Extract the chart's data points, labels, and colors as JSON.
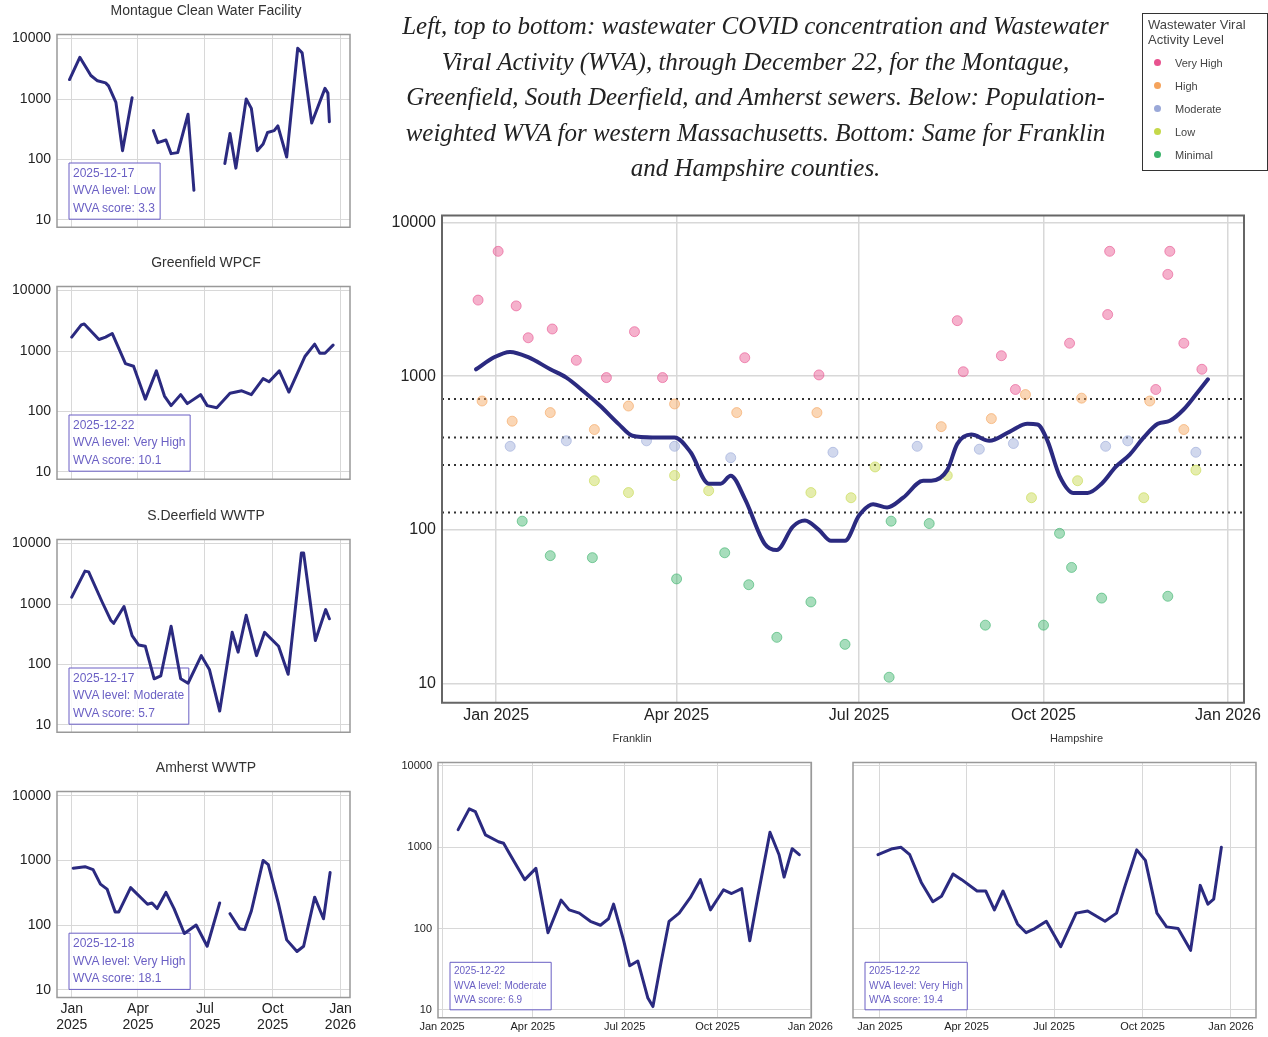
{
  "chart_data": [
    {
      "type": "line",
      "title": "Montague Clean Water Facility",
      "log": "y",
      "grid": true,
      "tick_labels": "y",
      "xlim": [
        "2024-12-12",
        "2026-01-14"
      ],
      "ylim": [
        7.6,
        11700
      ],
      "xticks": [
        {
          "value": "2025-01-01",
          "label": null
        },
        {
          "value": "2025-04-01",
          "label": null
        },
        {
          "value": "2025-07-01",
          "label": null
        },
        {
          "value": "2025-10-01",
          "label": null
        },
        {
          "value": "2026-01-01",
          "label": null
        }
      ],
      "yticks": [
        10,
        100,
        1000,
        10000
      ],
      "annotations": [
        "2025-12-17",
        "WVA level: Low",
        "WVA score: 3.3"
      ],
      "series": [
        {
          "type": "line",
          "color": "#2b2a80",
          "marker": "none",
          "line_style": "solid",
          "x": [
            "2024-12-29",
            "2025-01-12",
            "2025-01-27",
            "2025-02-05",
            "2025-02-16",
            "2025-02-20",
            "2025-03-02",
            "2025-03-11",
            "2025-03-24",
            "2025-04-06",
            "2025-04-13",
            "2025-04-22",
            "2025-04-28",
            "2025-05-09",
            "2025-05-16",
            "2025-05-25",
            "2025-06-08",
            "2025-06-16",
            "2025-06-30",
            "2025-07-28",
            "2025-08-04",
            "2025-08-12",
            "2025-08-26",
            "2025-09-02",
            "2025-09-10",
            "2025-09-18",
            "2025-09-24",
            "2025-10-03",
            "2025-10-08",
            "2025-10-20",
            "2025-11-04",
            "2025-11-10",
            "2025-11-23",
            "2025-12-11",
            "2025-12-15",
            "2025-12-17"
          ],
          "values": [
            2100,
            4900,
            2450,
            2000,
            1850,
            1650,
            880,
            140,
            1050,
            null,
            null,
            300,
            190,
            210,
            125,
            130,
            560,
            31,
            null,
            86,
            270,
            72,
            1000,
            700,
            140,
            180,
            280,
            300,
            360,
            110,
            6900,
            5800,
            400,
            1500,
            1250,
            420
          ]
        }
      ]
    },
    {
      "type": "line",
      "title": "Greenfield WPCF",
      "log": "y",
      "grid": true,
      "tick_labels": "y",
      "xlim": [
        "2024-12-12",
        "2026-01-14"
      ],
      "ylim": [
        7.6,
        11700
      ],
      "xticks": [
        {
          "value": "2025-01-01",
          "label": null
        },
        {
          "value": "2025-04-01",
          "label": null
        },
        {
          "value": "2025-07-01",
          "label": null
        },
        {
          "value": "2025-10-01",
          "label": null
        },
        {
          "value": "2026-01-01",
          "label": null
        }
      ],
      "yticks": [
        10,
        100,
        1000,
        10000
      ],
      "annotations": [
        "2025-12-22",
        "WVA level: Very High",
        "WVA score: 10.1"
      ],
      "series": [
        {
          "type": "line",
          "color": "#2b2a80",
          "marker": "none",
          "line_style": "solid",
          "x": [
            "2025-01-01",
            "2025-01-14",
            "2025-01-18",
            "2025-02-07",
            "2025-02-16",
            "2025-02-25",
            "2025-03-04",
            "2025-03-15",
            "2025-03-26",
            "2025-04-11",
            "2025-04-26",
            "2025-05-07",
            "2025-05-16",
            "2025-05-29",
            "2025-06-07",
            "2025-06-25",
            "2025-07-04",
            "2025-07-17",
            "2025-08-04",
            "2025-08-20",
            "2025-09-02",
            "2025-09-18",
            "2025-09-26",
            "2025-10-10",
            "2025-10-23",
            "2025-11-14",
            "2025-11-27",
            "2025-12-04",
            "2025-12-11",
            "2025-12-22"
          ],
          "values": [
            1700,
            2700,
            2800,
            1550,
            1700,
            1950,
            1250,
            620,
            560,
            160,
            470,
            180,
            125,
            190,
            135,
            190,
            125,
            115,
            200,
            220,
            190,
            350,
            310,
            470,
            210,
            820,
            1300,
            920,
            920,
            1250
          ]
        }
      ]
    },
    {
      "type": "line",
      "title": "S.Deerfield WWTP",
      "log": "y",
      "grid": true,
      "tick_labels": "y",
      "xlim": [
        "2024-12-12",
        "2026-01-14"
      ],
      "ylim": [
        7.6,
        11700
      ],
      "xticks": [
        {
          "value": "2025-01-01",
          "label": null
        },
        {
          "value": "2025-04-01",
          "label": null
        },
        {
          "value": "2025-07-01",
          "label": null
        },
        {
          "value": "2025-10-01",
          "label": null
        },
        {
          "value": "2026-01-01",
          "label": null
        }
      ],
      "yticks": [
        10,
        100,
        1000,
        10000
      ],
      "annotations": [
        "2025-12-17",
        "WVA level: Moderate",
        "WVA score: 5.7"
      ],
      "series": [
        {
          "type": "line",
          "color": "#2b2a80",
          "marker": "none",
          "line_style": "solid",
          "x": [
            "2025-01-01",
            "2025-01-19",
            "2025-01-24",
            "2025-02-11",
            "2025-02-23",
            "2025-02-27",
            "2025-03-13",
            "2025-03-24",
            "2025-04-02",
            "2025-04-11",
            "2025-04-23",
            "2025-05-02",
            "2025-05-16",
            "2025-05-29",
            "2025-06-08",
            "2025-06-26",
            "2025-07-07",
            "2025-07-21",
            "2025-08-07",
            "2025-08-15",
            "2025-08-26",
            "2025-09-09",
            "2025-09-20",
            "2025-10-09",
            "2025-10-22",
            "2025-11-09",
            "2025-11-12",
            "2025-11-28",
            "2025-12-12",
            "2025-12-17"
          ],
          "values": [
            1300,
            3500,
            3400,
            1100,
            540,
            480,
            910,
            300,
            210,
            200,
            58,
            65,
            430,
            58,
            49,
            140,
            83,
            17,
            340,
            160,
            650,
            140,
            340,
            200,
            69,
            7000,
            7000,
            250,
            810,
            570
          ]
        }
      ]
    },
    {
      "type": "line",
      "title": "Amherst WWTP",
      "log": "y",
      "grid": true,
      "xlim": [
        "2024-12-12",
        "2026-01-14"
      ],
      "ylim": [
        7.6,
        11700
      ],
      "xticks": [
        {
          "value": "2025-01-01",
          "label": "Jan 2025"
        },
        {
          "value": "2025-04-01",
          "label": "Apr 2025"
        },
        {
          "value": "2025-07-01",
          "label": "Jul 2025"
        },
        {
          "value": "2025-10-01",
          "label": "Oct 2025"
        },
        {
          "value": "2026-01-01",
          "label": "Jan 2026"
        }
      ],
      "yticks": [
        10,
        100,
        1000,
        10000
      ],
      "annotations": [
        "2025-12-18",
        "WVA level: Very High",
        "WVA score: 18.1"
      ],
      "series": [
        {
          "type": "line",
          "color": "#2b2a80",
          "marker": "none",
          "line_style": "solid",
          "x": [
            "2025-01-03",
            "2025-01-19",
            "2025-01-30",
            "2025-02-09",
            "2025-02-18",
            "2025-03-01",
            "2025-03-06",
            "2025-03-22",
            "2025-04-14",
            "2025-04-20",
            "2025-04-27",
            "2025-05-09",
            "2025-05-20",
            "2025-06-03",
            "2025-06-19",
            "2025-07-04",
            "2025-07-21",
            "2025-07-29",
            "2025-08-04",
            "2025-08-17",
            "2025-08-24",
            "2025-09-02",
            "2025-09-18",
            "2025-09-25",
            "2025-10-09",
            "2025-10-20",
            "2025-11-03",
            "2025-11-12",
            "2025-11-27",
            "2025-12-09",
            "2025-12-18"
          ],
          "values": [
            760,
            800,
            720,
            430,
            360,
            160,
            160,
            380,
            210,
            220,
            180,
            320,
            180,
            74,
            100,
            47,
            220,
            null,
            150,
            88,
            85,
            165,
            1000,
            860,
            210,
            59,
            39,
            47,
            270,
            125,
            650
          ]
        }
      ]
    },
    {
      "type": "line",
      "title": "Left, top to bottom: wastewater COVID concentration and Wastewater Viral Activity (WVA), through December 22, for the Montague, Greenfield, South Deerfield, and Amherst sewers. Below: Population-weighted WVA for western Massachusetts. Bottom: Same for Franklin and Hampshire counties.",
      "log": "y",
      "grid": true,
      "legend": "top right",
      "legend_title": "Wastewater Viral Activity Level",
      "xlim": [
        "2024-12-05",
        "2026-01-09"
      ],
      "ylim": [
        7.5,
        11100
      ],
      "xticks": [
        {
          "value": "2025-01-01",
          "label": "Jan 2025"
        },
        {
          "value": "2025-04-01",
          "label": "Apr 2025"
        },
        {
          "value": "2025-07-01",
          "label": "Jul 2025"
        },
        {
          "value": "2025-10-01",
          "label": "Oct 2025"
        },
        {
          "value": "2026-01-01",
          "label": "Jan 2026"
        }
      ],
      "yticks": [
        10,
        100,
        1000,
        10000
      ],
      "ref_lines": [
        {
          "axis": "y",
          "value": 710,
          "line_style": "dotted",
          "color": "#333333"
        },
        {
          "axis": "y",
          "value": 400,
          "line_style": "dotted",
          "color": "#333333"
        },
        {
          "axis": "y",
          "value": 265,
          "line_style": "dotted",
          "color": "#333333"
        },
        {
          "axis": "y",
          "value": 130,
          "line_style": "dotted",
          "color": "#333333"
        }
      ],
      "series": [
        {
          "type": "scatter",
          "name": "Very High",
          "color": "#e8538f",
          "marker": "circle",
          "x": [
            "2024-12-23",
            "2025-01-02",
            "2025-01-11",
            "2025-01-17",
            "2025-01-29",
            "2025-02-10",
            "2025-02-25",
            "2025-03-11",
            "2025-03-25",
            "2025-05-05",
            "2025-06-11",
            "2025-08-19",
            "2025-08-22",
            "2025-09-10",
            "2025-09-17",
            "2025-10-14",
            "2025-11-03",
            "2025-11-02",
            "2025-11-26",
            "2025-12-03",
            "2025-12-02",
            "2025-12-10",
            "2025-12-19"
          ],
          "values": [
            3130,
            6500,
            2870,
            1780,
            2030,
            1270,
            980,
            1950,
            980,
            1320,
            1020,
            2300,
            1070,
            1360,
            820,
            1640,
            6500,
            2520,
            820,
            6500,
            4600,
            1640,
            1110
          ]
        },
        {
          "type": "scatter",
          "name": "High",
          "color": "#f5a35c",
          "marker": "circle",
          "x": [
            "2024-12-25",
            "2025-01-09",
            "2025-01-28",
            "2025-02-19",
            "2025-03-08",
            "2025-03-31",
            "2025-05-01",
            "2025-06-10",
            "2025-08-11",
            "2025-09-05",
            "2025-09-22",
            "2025-10-20",
            "2025-11-23",
            "2025-12-10"
          ],
          "values": [
            690,
            510,
            580,
            450,
            640,
            660,
            580,
            580,
            470,
            530,
            760,
            720,
            690,
            450
          ]
        },
        {
          "type": "scatter",
          "name": "Moderate",
          "color": "#9aa8d8",
          "marker": "circle",
          "x": [
            "2025-01-08",
            "2025-02-05",
            "2025-03-17",
            "2025-03-31",
            "2025-04-28",
            "2025-06-18",
            "2025-07-30",
            "2025-08-30",
            "2025-09-16",
            "2025-11-01",
            "2025-11-12",
            "2025-12-16"
          ],
          "values": [
            350,
            380,
            380,
            350,
            295,
            320,
            350,
            335,
            365,
            350,
            380,
            320
          ]
        },
        {
          "type": "scatter",
          "name": "Low",
          "color": "#c5d84a",
          "marker": "circle",
          "x": [
            "2025-02-19",
            "2025-03-08",
            "2025-03-31",
            "2025-04-17",
            "2025-06-07",
            "2025-06-27",
            "2025-07-09",
            "2025-08-14",
            "2025-09-25",
            "2025-10-18",
            "2025-11-20",
            "2025-12-16"
          ],
          "values": [
            209,
            175,
            226,
            180,
            175,
            162,
            257,
            226,
            162,
            209,
            162,
            245
          ]
        },
        {
          "type": "scatter",
          "name": "Minimal",
          "color": "#3bb36a",
          "marker": "circle",
          "x": [
            "2025-01-14",
            "2025-01-28",
            "2025-02-18",
            "2025-04-01",
            "2025-04-25",
            "2025-05-07",
            "2025-05-21",
            "2025-06-07",
            "2025-06-24",
            "2025-07-16",
            "2025-07-17",
            "2025-08-05",
            "2025-09-02",
            "2025-10-01",
            "2025-10-09",
            "2025-10-15",
            "2025-10-30",
            "2025-12-02"
          ],
          "values": [
            114,
            68,
            66,
            48,
            71,
            44,
            20,
            34,
            18,
            11,
            114,
            110,
            24,
            24,
            95,
            57,
            36,
            37
          ]
        },
        {
          "type": "line",
          "color": "#2b2a80",
          "marker": "none",
          "line_style": "solid",
          "x": [
            "2024-12-22",
            "2024-12-31",
            "2025-01-08",
            "2025-01-17",
            "2025-01-28",
            "2025-02-05",
            "2025-02-14",
            "2025-02-22",
            "2025-03-03",
            "2025-03-10",
            "2025-03-20",
            "2025-03-31",
            "2025-04-08",
            "2025-04-17",
            "2025-04-23",
            "2025-04-28",
            "2025-05-05",
            "2025-05-15",
            "2025-05-21",
            "2025-05-29",
            "2025-06-04",
            "2025-06-11",
            "2025-06-17",
            "2025-06-24",
            "2025-07-01",
            "2025-07-08",
            "2025-07-15",
            "2025-07-23",
            "2025-08-02",
            "2025-08-06",
            "2025-08-14",
            "2025-08-19",
            "2025-08-26",
            "2025-09-04",
            "2025-09-14",
            "2025-09-23",
            "2025-09-28",
            "2025-10-03",
            "2025-10-09",
            "2025-10-16",
            "2025-10-23",
            "2025-10-30",
            "2025-11-06",
            "2025-11-13",
            "2025-11-20",
            "2025-11-27",
            "2025-12-03",
            "2025-12-10",
            "2025-12-17",
            "2025-12-22"
          ],
          "values": [
            1110,
            1330,
            1440,
            1330,
            1110,
            980,
            790,
            640,
            490,
            410,
            400,
            400,
            320,
            200,
            200,
            225,
            160,
            81,
            74,
            105,
            115,
            100,
            85,
            85,
            124,
            147,
            140,
            162,
            209,
            209,
            245,
            363,
            417,
            380,
            435,
            490,
            485,
            380,
            225,
            174,
            174,
            200,
            257,
            309,
            400,
            490,
            513,
            610,
            790,
            955
          ]
        }
      ]
    },
    {
      "type": "line",
      "title": "Franklin",
      "log": "y",
      "grid": true,
      "xlim": [
        "2024-12-28",
        "2026-01-02"
      ],
      "ylim": [
        8,
        11000
      ],
      "xticks": [
        {
          "value": "2025-01-01",
          "label": "Jan 2025"
        },
        {
          "value": "2025-04-01",
          "label": "Apr 2025"
        },
        {
          "value": "2025-07-01",
          "label": "Jul 2025"
        },
        {
          "value": "2025-10-01",
          "label": "Oct 2025"
        },
        {
          "value": "2026-01-01",
          "label": "Jan 2026"
        }
      ],
      "yticks": [
        10,
        100,
        1000,
        10000
      ],
      "annotations": [
        "2025-12-22",
        "WVA level: Moderate",
        "WVA score: 6.9"
      ],
      "series": [
        {
          "type": "line",
          "color": "#2b2a80",
          "marker": "none",
          "line_style": "solid",
          "x": [
            "2025-01-17",
            "2025-01-28",
            "2025-02-03",
            "2025-02-13",
            "2025-02-26",
            "2025-03-03",
            "2025-03-14",
            "2025-03-24",
            "2025-04-04",
            "2025-04-16",
            "2025-04-29",
            "2025-05-07",
            "2025-05-17",
            "2025-05-28",
            "2025-06-07",
            "2025-06-15",
            "2025-06-20",
            "2025-06-30",
            "2025-07-06",
            "2025-07-14",
            "2025-07-24",
            "2025-07-29",
            "2025-08-06",
            "2025-08-14",
            "2025-08-24",
            "2025-09-04",
            "2025-09-14",
            "2025-09-24",
            "2025-10-07",
            "2025-10-15",
            "2025-10-25",
            "2025-11-02",
            "2025-11-10",
            "2025-11-22",
            "2025-12-01",
            "2025-12-06",
            "2025-12-14",
            "2025-12-21"
          ],
          "values": [
            1650,
            2970,
            2750,
            1420,
            1170,
            1120,
            650,
            400,
            550,
            89,
            224,
            170,
            155,
            123,
            110,
            132,
            200,
            71,
            35,
            40,
            14,
            11,
            38,
            123,
            155,
            240,
            400,
            170,
            300,
            270,
            310,
            71,
            250,
            1530,
            810,
            430,
            960,
            810
          ]
        }
      ]
    },
    {
      "type": "line",
      "title": "Hampshire",
      "log": "y",
      "grid": true,
      "tick_labels": "x",
      "xlim": [
        "2024-12-04",
        "2026-01-27"
      ],
      "ylim": [
        8,
        11000
      ],
      "xticks": [
        {
          "value": "2025-01-01",
          "label": "Jan 2025"
        },
        {
          "value": "2025-04-01",
          "label": "Apr 2025"
        },
        {
          "value": "2025-07-01",
          "label": "Jul 2025"
        },
        {
          "value": "2025-10-01",
          "label": "Oct 2025"
        },
        {
          "value": "2026-01-01",
          "label": "Jan 2026"
        }
      ],
      "yticks": [
        10,
        100,
        1000,
        10000
      ],
      "annotations": [
        "2025-12-22",
        "WVA level: Very High",
        "WVA score: 19.4"
      ],
      "series": [
        {
          "type": "line",
          "color": "#2b2a80",
          "marker": "none",
          "line_style": "solid",
          "x": [
            "2024-12-30",
            "2025-01-14",
            "2025-01-23",
            "2025-02-01",
            "2025-02-13",
            "2025-02-25",
            "2025-03-06",
            "2025-03-18",
            "2025-03-27",
            "2025-04-12",
            "2025-04-21",
            "2025-04-30",
            "2025-05-09",
            "2025-05-24",
            "2025-06-02",
            "2025-06-11",
            "2025-06-23",
            "2025-07-08",
            "2025-07-24",
            "2025-08-05",
            "2025-08-23",
            "2025-09-04",
            "2025-09-13",
            "2025-09-25",
            "2025-10-04",
            "2025-10-16",
            "2025-10-26",
            "2025-11-07",
            "2025-11-20",
            "2025-11-30",
            "2025-12-08",
            "2025-12-14",
            "2025-12-22"
          ],
          "values": [
            810,
            960,
            1000,
            810,
            370,
            214,
            250,
            470,
            400,
            290,
            290,
            170,
            290,
            114,
            89,
            100,
            123,
            60,
            155,
            165,
            123,
            155,
            340,
            930,
            690,
            155,
            105,
            100,
            54,
            340,
            200,
            230,
            1000
          ]
        }
      ]
    }
  ]
}
